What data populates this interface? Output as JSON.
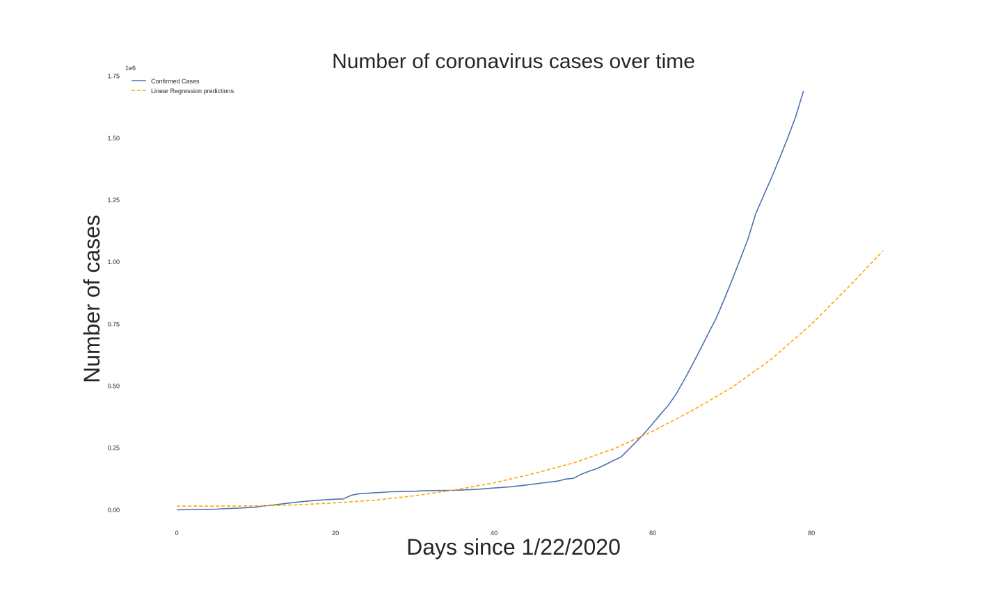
{
  "chart_data": {
    "type": "line",
    "title": "Number of coronavirus cases over time",
    "xlabel": "Days since 1/22/2020",
    "ylabel": "Number of cases",
    "xlim": [
      -6.5,
      93.5
    ],
    "ylim": [
      -0.09,
      1.76
    ],
    "y_offset_label": "1e6",
    "x_ticks": [
      0,
      20,
      40,
      60,
      80
    ],
    "y_ticks": [
      0.0,
      0.25,
      0.5,
      0.75,
      1.0,
      1.25,
      1.5,
      1.75
    ],
    "y_tick_labels": [
      "0.00",
      "0.25",
      "0.50",
      "0.75",
      "1.00",
      "1.25",
      "1.50",
      "1.75"
    ],
    "grid": false,
    "legend_position": "top-left",
    "legend": {
      "entries": [
        {
          "label": "Confirmed Cases",
          "color": "#4c72b0",
          "dash": "solid"
        },
        {
          "label": "Linear Regression predictions",
          "color": "#ffa500",
          "dash": "dashed"
        }
      ]
    },
    "series": [
      {
        "name": "Confirmed Cases",
        "color": "#4c72b0",
        "dash": "solid",
        "x": [
          0,
          4,
          5,
          6,
          8,
          10,
          11,
          12,
          14,
          16,
          18,
          20,
          21,
          22,
          23,
          25,
          27,
          30,
          31,
          33,
          35,
          38,
          40,
          42,
          44,
          46,
          48,
          49,
          50,
          51,
          52,
          53,
          54,
          55,
          56,
          57,
          58,
          59,
          60,
          61,
          62,
          63,
          64,
          65,
          66,
          67,
          68,
          69,
          70,
          71,
          72,
          73,
          74,
          75,
          76,
          77,
          78,
          79
        ],
        "y": [
          0.001,
          0.003,
          0.004,
          0.006,
          0.008,
          0.012,
          0.017,
          0.02,
          0.028,
          0.035,
          0.04,
          0.044,
          0.045,
          0.06,
          0.066,
          0.07,
          0.074,
          0.076,
          0.078,
          0.079,
          0.08,
          0.084,
          0.089,
          0.094,
          0.101,
          0.109,
          0.117,
          0.125,
          0.128,
          0.145,
          0.157,
          0.168,
          0.183,
          0.199,
          0.214,
          0.246,
          0.278,
          0.312,
          0.349,
          0.387,
          0.424,
          0.471,
          0.527,
          0.587,
          0.649,
          0.712,
          0.774,
          0.849,
          0.928,
          1.01,
          1.093,
          1.197,
          1.27,
          1.343,
          1.42,
          1.5,
          1.585,
          1.69
        ]
      },
      {
        "name": "Linear Regression predictions",
        "color": "#ffa500",
        "dash": "dashed",
        "x": [
          0,
          5,
          10,
          15,
          20,
          25,
          30,
          35,
          40,
          45,
          50,
          55,
          60,
          65,
          70,
          75,
          80,
          85,
          89
        ],
        "y": [
          0.016,
          0.016,
          0.017,
          0.021,
          0.029,
          0.04,
          0.058,
          0.081,
          0.11,
          0.147,
          0.19,
          0.246,
          0.318,
          0.402,
          0.495,
          0.61,
          0.75,
          0.91,
          1.045
        ]
      }
    ]
  }
}
